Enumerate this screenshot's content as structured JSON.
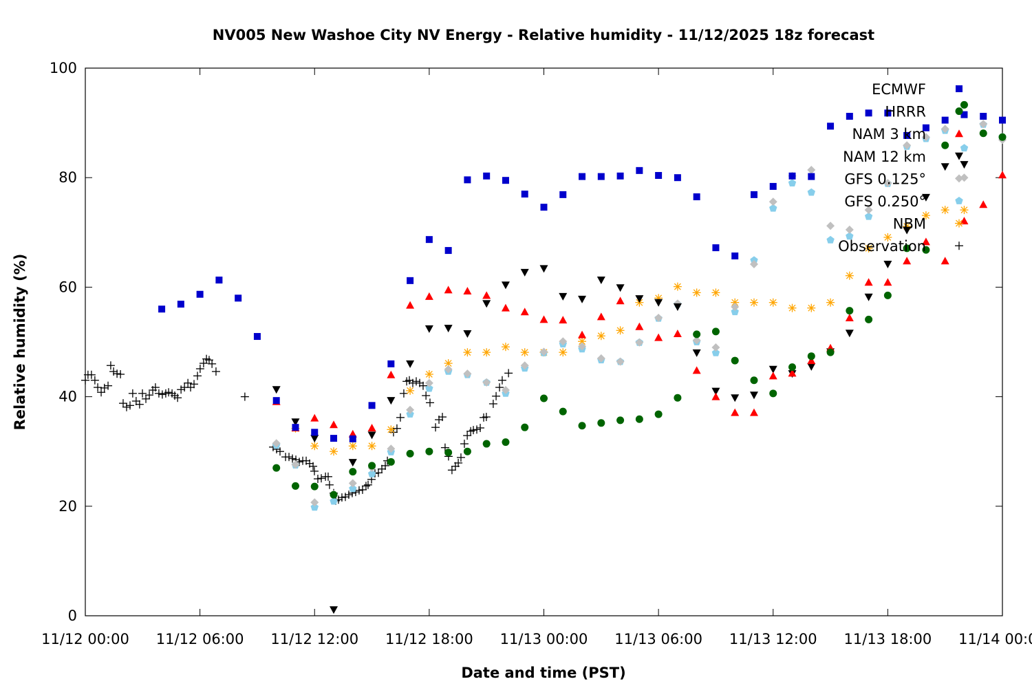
{
  "chart_data": {
    "type": "scatter",
    "title": "NV005 New Washoe City NV Energy - Relative humidity - 11/12/2025 18z forecast",
    "xlabel": "Date and time (PST)",
    "ylabel": "Relative humidity (%)",
    "xlim_hours": [
      0,
      48
    ],
    "ylim": [
      0,
      100
    ],
    "x_unit": "hours since 11/12 00:00",
    "xticks": [
      {
        "h": 0,
        "label": "11/12 00:00"
      },
      {
        "h": 6,
        "label": "11/12 06:00"
      },
      {
        "h": 12,
        "label": "11/12 12:00"
      },
      {
        "h": 18,
        "label": "11/12 18:00"
      },
      {
        "h": 24,
        "label": "11/13 00:00"
      },
      {
        "h": 30,
        "label": "11/13 06:00"
      },
      {
        "h": 36,
        "label": "11/13 12:00"
      },
      {
        "h": 42,
        "label": "11/13 18:00"
      },
      {
        "h": 48,
        "label": "11/14 00:00"
      }
    ],
    "yticks": [
      {
        "v": 0,
        "label": "0"
      },
      {
        "v": 20,
        "label": "20"
      },
      {
        "v": 40,
        "label": "40"
      },
      {
        "v": 60,
        "label": "60"
      },
      {
        "v": 80,
        "label": "80"
      },
      {
        "v": 100,
        "label": "100"
      }
    ],
    "grid": false,
    "legend_position": "top-right",
    "series": [
      {
        "name": "ECMWF",
        "marker": "square",
        "color": "#0000cc",
        "start_hour": 4,
        "values": [
          56.0,
          56.9,
          58.7,
          61.3,
          58.0,
          51.0,
          39.3,
          34.4,
          33.5,
          32.4,
          32.3,
          38.4,
          46.0,
          61.2,
          68.7,
          66.7,
          79.6,
          80.3,
          79.5,
          77.0,
          74.6,
          76.9,
          80.2,
          80.2,
          80.3,
          81.3,
          80.4,
          80.0,
          76.5,
          67.2,
          65.7,
          76.9,
          78.4,
          80.3,
          80.2,
          89.4,
          91.2,
          91.8,
          91.8,
          87.7,
          89.1,
          90.5,
          91.5,
          91.2,
          90.5
        ]
      },
      {
        "name": "HRRR",
        "marker": "circle",
        "color": "#006400",
        "start_hour": 10,
        "values": [
          27.0,
          23.7,
          23.6,
          22.1,
          26.3,
          27.4,
          28.1,
          29.6,
          30.0,
          29.8,
          30.0,
          31.4,
          31.7,
          34.4,
          39.7,
          37.3,
          34.7,
          35.2,
          35.7,
          35.9,
          36.8,
          39.8,
          51.4,
          51.9,
          46.6,
          43.0,
          40.6,
          45.4,
          47.4,
          48.1,
          55.7,
          54.1,
          58.5,
          67.1,
          66.8,
          85.9,
          93.3,
          88.1,
          87.4
        ]
      },
      {
        "name": "NAM 3 km",
        "marker": "triangle-up",
        "color": "#ff0000",
        "start_hour": 10,
        "values": [
          39.1,
          34.3,
          36.1,
          34.9,
          33.2,
          34.3,
          44.0,
          56.7,
          58.3,
          59.5,
          59.3,
          58.5,
          56.2,
          55.5,
          54.1,
          54.0,
          51.3,
          54.6,
          57.5,
          52.8,
          50.8,
          51.5,
          44.8,
          40.0,
          37.1,
          37.1,
          43.8,
          44.3,
          46.6,
          48.9,
          54.4,
          60.9,
          60.9,
          64.8,
          68.3,
          64.8,
          72.1,
          75.1,
          80.5
        ]
      },
      {
        "name": "NAM 12 km",
        "marker": "triangle-down",
        "color": "#000000",
        "start_hour": 10,
        "values": [
          41.3,
          35.4,
          32.4,
          1.1,
          28.0,
          33.0,
          39.3,
          46.0,
          52.4,
          52.5,
          51.5,
          57.0,
          60.4,
          62.7,
          63.4,
          58.3,
          57.8,
          61.3,
          59.9,
          57.9,
          57.2,
          56.4,
          48.0,
          41.0,
          39.8,
          40.3,
          45.0,
          44.2,
          45.5,
          48.2,
          51.6,
          58.2,
          64.2,
          70.4,
          76.4,
          82.0,
          82.4
        ]
      },
      {
        "name": "GFS 0.125°",
        "marker": "diamond",
        "color": "#c0c0c0",
        "start_hour": 10,
        "values": [
          31.5,
          27.6,
          20.7,
          22.2,
          24.2,
          27.0,
          30.5,
          37.6,
          42.5,
          45.0,
          44.2,
          42.6,
          41.2,
          45.7,
          48.2,
          50.1,
          49.2,
          47.0,
          46.4,
          49.9,
          54.4,
          57.0,
          50.3,
          49.0,
          56.4,
          64.2,
          75.6,
          80.3,
          81.4,
          71.2,
          70.5,
          74.1,
          79.0,
          85.9,
          87.4,
          88.9,
          80.0,
          89.8,
          86.9
        ]
      },
      {
        "name": "GFS 0.250°",
        "marker": "pentagon",
        "color": "#87ceeb",
        "start_hour": 10,
        "values": [
          31.1,
          27.5,
          19.8,
          20.9,
          23.2,
          25.9,
          29.9,
          36.8,
          41.5,
          44.6,
          44.0,
          42.6,
          40.6,
          45.2,
          48.0,
          49.6,
          48.7,
          46.7,
          46.4,
          49.9,
          54.3,
          56.9,
          50.0,
          48.0,
          55.5,
          64.9,
          74.4,
          79.0,
          77.3,
          68.6,
          69.3,
          72.9,
          78.9,
          85.7,
          87.1,
          88.6,
          85.4,
          89.7,
          87.4
        ]
      },
      {
        "name": "NBM",
        "marker": "asterisk",
        "color": "#ffa500",
        "start_hour": 11,
        "values": [
          34.2,
          31.0,
          30.0,
          31.0,
          31.0,
          34.0,
          41.1,
          44.1,
          46.1,
          48.1,
          48.1,
          49.1,
          48.1,
          48.1,
          48.1,
          50.1,
          51.1,
          52.1,
          57.2,
          58.0,
          60.1,
          59.0,
          59.0,
          57.2,
          57.2,
          57.2,
          56.2,
          56.2,
          57.2,
          62.1,
          67.1,
          69.1,
          71.1,
          73.1,
          74.1,
          74.1
        ]
      },
      {
        "name": "Observation",
        "marker": "plus",
        "color": "#000000",
        "hours": [
          0,
          0.14,
          0.32,
          0.5,
          0.65,
          0.83,
          1.0,
          1.19,
          1.33,
          1.48,
          1.66,
          1.84,
          1.98,
          2.16,
          2.34,
          2.48,
          2.66,
          2.84,
          2.99,
          3.17,
          3.35,
          3.53,
          3.67,
          3.85,
          4.03,
          4.21,
          4.36,
          4.54,
          4.68,
          4.83,
          5.01,
          5.19,
          5.37,
          5.51,
          5.69,
          5.87,
          6.01,
          6.19,
          6.34,
          6.48,
          6.63,
          6.84,
          8.35,
          9.83,
          10.01,
          10.19,
          10.48,
          10.66,
          10.84,
          11.02,
          11.2,
          11.38,
          11.56,
          11.74,
          11.92,
          11.99,
          12.17,
          12.35,
          12.57,
          12.71,
          12.78,
          13.0,
          13.11,
          13.25,
          13.43,
          13.61,
          13.79,
          13.97,
          14.15,
          14.33,
          14.51,
          14.69,
          14.8,
          14.98,
          15.16,
          15.34,
          15.52,
          15.7,
          15.81,
          16.13,
          16.31,
          16.49,
          16.67,
          16.82,
          16.96,
          17.14,
          17.32,
          17.5,
          17.68,
          17.83,
          18.04,
          18.33,
          18.51,
          18.69,
          18.83,
          19.01,
          19.19,
          19.37,
          19.52,
          19.66,
          19.84,
          19.99,
          20.17,
          20.31,
          20.49,
          20.67,
          20.85,
          20.99,
          21.35,
          21.5,
          21.68,
          21.82,
          22.15
        ],
        "values": [
          43.0,
          44.0,
          44.0,
          43.0,
          41.7,
          40.8,
          41.6,
          42.0,
          45.7,
          44.6,
          44.2,
          44.1,
          38.8,
          38.1,
          38.4,
          40.6,
          39.2,
          38.6,
          40.6,
          39.6,
          40.3,
          41.2,
          41.7,
          40.6,
          40.4,
          40.6,
          40.8,
          40.6,
          40.2,
          39.8,
          41.3,
          41.7,
          42.5,
          41.7,
          42.3,
          43.8,
          45.1,
          46.1,
          46.9,
          46.7,
          46.0,
          44.6,
          40.0,
          30.8,
          30.4,
          30.0,
          29.0,
          29.0,
          28.7,
          28.5,
          28.1,
          28.3,
          28.3,
          27.8,
          27.3,
          26.4,
          25.0,
          25.1,
          25.4,
          25.4,
          23.9,
          22.4,
          21.0,
          21.2,
          21.6,
          21.7,
          22.1,
          22.4,
          22.6,
          22.9,
          23.0,
          23.7,
          23.9,
          24.9,
          26.0,
          26.1,
          26.8,
          27.4,
          28.3,
          33.5,
          34.2,
          36.2,
          40.6,
          42.8,
          43.0,
          42.5,
          42.8,
          42.5,
          42.0,
          40.2,
          38.9,
          34.4,
          35.8,
          36.3,
          30.7,
          29.1,
          26.6,
          27.3,
          27.9,
          28.9,
          31.4,
          32.9,
          33.7,
          33.9,
          34.0,
          34.3,
          36.2,
          36.3,
          38.7,
          40.1,
          41.7,
          43.0,
          44.3
        ]
      }
    ]
  }
}
